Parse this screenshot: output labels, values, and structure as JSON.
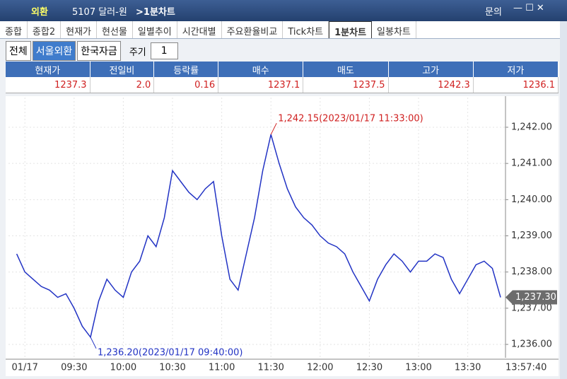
{
  "title_bar": {
    "market": "외환",
    "code": "5107 달러-원",
    "screen": ">1분차트",
    "help": "문의"
  },
  "tabs": [
    "종합",
    "종합2",
    "현재가",
    "현선물",
    "일별추이",
    "시간대별",
    "주요환율비교",
    "Tick차트",
    "1분차트",
    "일봉차트"
  ],
  "filters": [
    "전체",
    "서울외환",
    "한국자금"
  ],
  "period": {
    "label": "주기",
    "value": "1"
  },
  "quote_table": {
    "headers": [
      "현재가",
      "전일비",
      "등락률",
      "매수",
      "매도",
      "고가",
      "저가"
    ],
    "values": [
      "1237.3",
      "2.0",
      "0.16",
      "1237.1",
      "1237.5",
      "1242.3",
      "1236.1"
    ]
  },
  "chart_data": {
    "type": "line",
    "x": [
      "08:55",
      "09:00",
      "09:05",
      "09:10",
      "09:15",
      "09:20",
      "09:25",
      "09:30",
      "09:35",
      "09:40",
      "09:45",
      "09:50",
      "09:55",
      "10:00",
      "10:05",
      "10:10",
      "10:15",
      "10:20",
      "10:25",
      "10:30",
      "10:35",
      "10:40",
      "10:45",
      "10:50",
      "10:55",
      "11:00",
      "11:05",
      "11:10",
      "11:15",
      "11:20",
      "11:25",
      "11:30",
      "11:35",
      "11:40",
      "11:45",
      "11:50",
      "11:55",
      "12:00",
      "12:05",
      "12:10",
      "12:15",
      "12:20",
      "12:25",
      "12:30",
      "12:35",
      "12:40",
      "12:45",
      "12:50",
      "12:55",
      "13:00",
      "13:05",
      "13:10",
      "13:15",
      "13:20",
      "13:25",
      "13:30",
      "13:35",
      "13:40",
      "13:45",
      "13:50"
    ],
    "series": [
      {
        "color": "#2233c4",
        "values": [
          1238.5,
          1238.0,
          1237.8,
          1237.6,
          1237.5,
          1237.3,
          1237.4,
          1237.0,
          1236.5,
          1236.2,
          1237.2,
          1237.8,
          1237.5,
          1237.3,
          1238.0,
          1238.3,
          1239.0,
          1238.7,
          1239.5,
          1240.8,
          1240.5,
          1240.2,
          1240.0,
          1240.3,
          1240.5,
          1239.0,
          1237.8,
          1237.5,
          1238.5,
          1239.5,
          1240.8,
          1241.8,
          1241.0,
          1240.3,
          1239.8,
          1239.5,
          1239.3,
          1239.0,
          1238.8,
          1238.7,
          1238.5,
          1238.0,
          1237.6,
          1237.2,
          1237.8,
          1238.2,
          1238.5,
          1238.3,
          1238.0,
          1238.3,
          1238.3,
          1238.5,
          1238.4,
          1237.8,
          1237.4,
          1237.8,
          1238.2,
          1238.3,
          1238.1,
          1237.3
        ]
      }
    ],
    "xlim": [
      "08:50",
      "13:53"
    ],
    "xticks": [
      {
        "value": "09:00",
        "label": "01/17"
      },
      "09:30",
      "10:00",
      "10:30",
      "11:00",
      "11:30",
      "12:00",
      "12:30",
      "13:00",
      "13:30"
    ],
    "last_time": "13:57:40",
    "ylim": [
      1235.63,
      1242.82
    ],
    "yticks": [
      {
        "value": 1236,
        "label": "1,236.00"
      },
      {
        "value": 1237,
        "label": "1,237.00"
      },
      {
        "value": 1238,
        "label": "1,238.00"
      },
      {
        "value": 1239,
        "label": "1,239.00"
      },
      {
        "value": 1240,
        "label": "1,240.00"
      },
      {
        "value": 1241,
        "label": "1,241.00"
      },
      {
        "value": 1242,
        "label": "1,242.00"
      }
    ],
    "grid": true,
    "annotations": [
      {
        "text": "1,242.15(2023/01/17 11:33:00)",
        "color": "#d02020"
      },
      {
        "text": "1,236.20(2023/01/17 09:40:00)",
        "color": "#2233c4"
      }
    ],
    "last_price_label": "1,237.30"
  }
}
